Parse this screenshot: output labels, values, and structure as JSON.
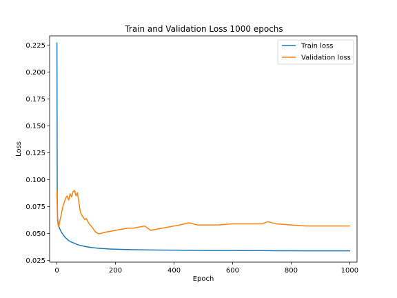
{
  "chart_data": {
    "type": "line",
    "title": "Train and Validation Loss 1000 epochs",
    "xlabel": "Epoch",
    "ylabel": "Loss",
    "xlim": [
      -25,
      1025
    ],
    "ylim": [
      0.0235,
      0.2335
    ],
    "x_ticks": [
      0,
      200,
      400,
      600,
      800,
      1000
    ],
    "x_tick_labels": [
      "0",
      "200",
      "400",
      "600",
      "800",
      "1000"
    ],
    "y_ticks": [
      0.025,
      0.05,
      0.075,
      0.1,
      0.125,
      0.15,
      0.175,
      0.2,
      0.225
    ],
    "y_tick_labels": [
      "0.025",
      "0.050",
      "0.075",
      "0.100",
      "0.125",
      "0.150",
      "0.175",
      "0.200",
      "0.225"
    ],
    "grid": false,
    "legend_position": "upper-right",
    "series": [
      {
        "name": "Train loss",
        "color": "#1f77b4",
        "x": [
          0,
          1,
          2,
          3,
          5,
          8,
          12,
          16,
          20,
          25,
          30,
          40,
          50,
          60,
          70,
          80,
          100,
          120,
          140,
          160,
          180,
          200,
          250,
          300,
          350,
          400,
          450,
          500,
          550,
          600,
          650,
          700,
          750,
          800,
          850,
          900,
          950,
          1000
        ],
        "values": [
          0.227,
          0.088,
          0.067,
          0.062,
          0.058,
          0.0555,
          0.053,
          0.051,
          0.0495,
          0.0475,
          0.046,
          0.0435,
          0.042,
          0.041,
          0.0398,
          0.039,
          0.0378,
          0.037,
          0.0364,
          0.036,
          0.0357,
          0.0355,
          0.0351,
          0.0349,
          0.0347,
          0.0346,
          0.0345,
          0.0344,
          0.0343,
          0.0343,
          0.0342,
          0.0342,
          0.0341,
          0.0341,
          0.034,
          0.034,
          0.034,
          0.034
        ]
      },
      {
        "name": "Validation loss",
        "color": "#ff7f0e",
        "x": [
          0,
          2,
          4,
          6,
          8,
          10,
          15,
          20,
          25,
          30,
          35,
          40,
          45,
          50,
          55,
          60,
          65,
          70,
          75,
          80,
          85,
          90,
          95,
          100,
          110,
          120,
          130,
          140,
          150,
          160,
          180,
          200,
          220,
          240,
          260,
          280,
          300,
          320,
          340,
          360,
          380,
          400,
          420,
          450,
          480,
          500,
          550,
          600,
          650,
          700,
          720,
          750,
          800,
          850,
          900,
          950,
          1000
        ],
        "values": [
          0.09,
          0.062,
          0.058,
          0.056,
          0.059,
          0.062,
          0.068,
          0.075,
          0.079,
          0.083,
          0.085,
          0.081,
          0.087,
          0.084,
          0.089,
          0.09,
          0.085,
          0.088,
          0.079,
          0.07,
          0.067,
          0.065,
          0.063,
          0.064,
          0.059,
          0.056,
          0.052,
          0.05,
          0.05,
          0.051,
          0.052,
          0.053,
          0.054,
          0.055,
          0.055,
          0.056,
          0.057,
          0.053,
          0.054,
          0.055,
          0.056,
          0.057,
          0.058,
          0.06,
          0.058,
          0.058,
          0.058,
          0.059,
          0.059,
          0.059,
          0.061,
          0.059,
          0.058,
          0.057,
          0.057,
          0.057,
          0.057
        ]
      }
    ]
  }
}
